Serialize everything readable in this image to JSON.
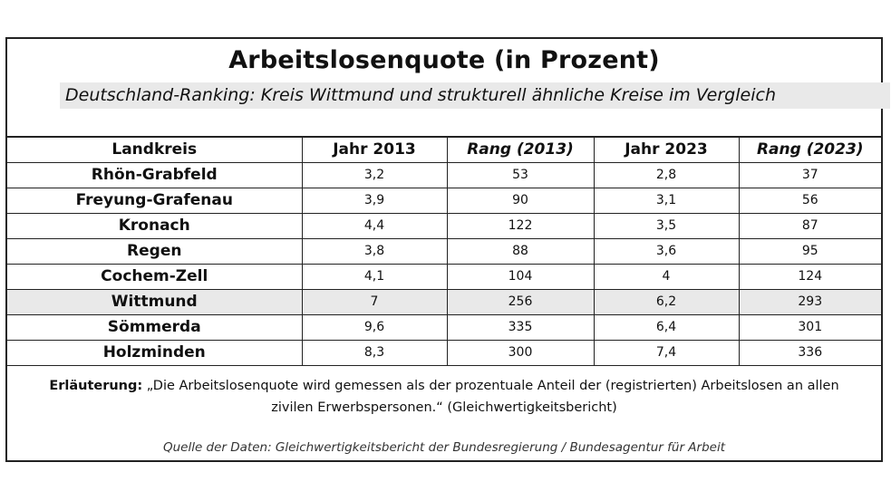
{
  "title": "Arbeitslosenquote (in Prozent)",
  "subtitle": "Deutschland-Ranking: Kreis Wittmund und strukturell ähnliche Kreise im Vergleich",
  "table": {
    "headers": [
      "Landkreis",
      "Jahr 2013",
      "Rang (2013)",
      "Jahr 2023",
      "Rang (2023)"
    ],
    "rows": [
      [
        "Rhön-Grabfeld",
        "3,2",
        "53",
        "2,8",
        "37"
      ],
      [
        "Freyung-Grafenau",
        "3,9",
        "90",
        "3,1",
        "56"
      ],
      [
        "Kronach",
        "4,4",
        "122",
        "3,5",
        "87"
      ],
      [
        "Regen",
        "3,8",
        "88",
        "3,6",
        "95"
      ],
      [
        "Cochem-Zell",
        "4,1",
        "104",
        "4",
        "124"
      ],
      [
        "Wittmund",
        "7",
        "256",
        "6,2",
        "293"
      ],
      [
        "Sömmerda",
        "9,6",
        "335",
        "6,4",
        "301"
      ],
      [
        "Holzminden",
        "8,3",
        "300",
        "7,4",
        "336"
      ]
    ],
    "highlight_row": "Wittmund"
  },
  "note": {
    "label": "Erläuterung:",
    "line1": "„Die Arbeitslosenquote wird gemessen als der prozentuale Anteil der (registrierten) Arbeitslosen an allen",
    "line2": "zivilen Erwerbspersonen.“ (Gleichwertigkeitsbericht)"
  },
  "source": "Quelle der Daten: Gleichwertigkeitsbericht der Bundesregierung / Bundesagentur für Arbeit",
  "colors": {
    "highlight": "#e9e9e9",
    "border": "#222222"
  }
}
